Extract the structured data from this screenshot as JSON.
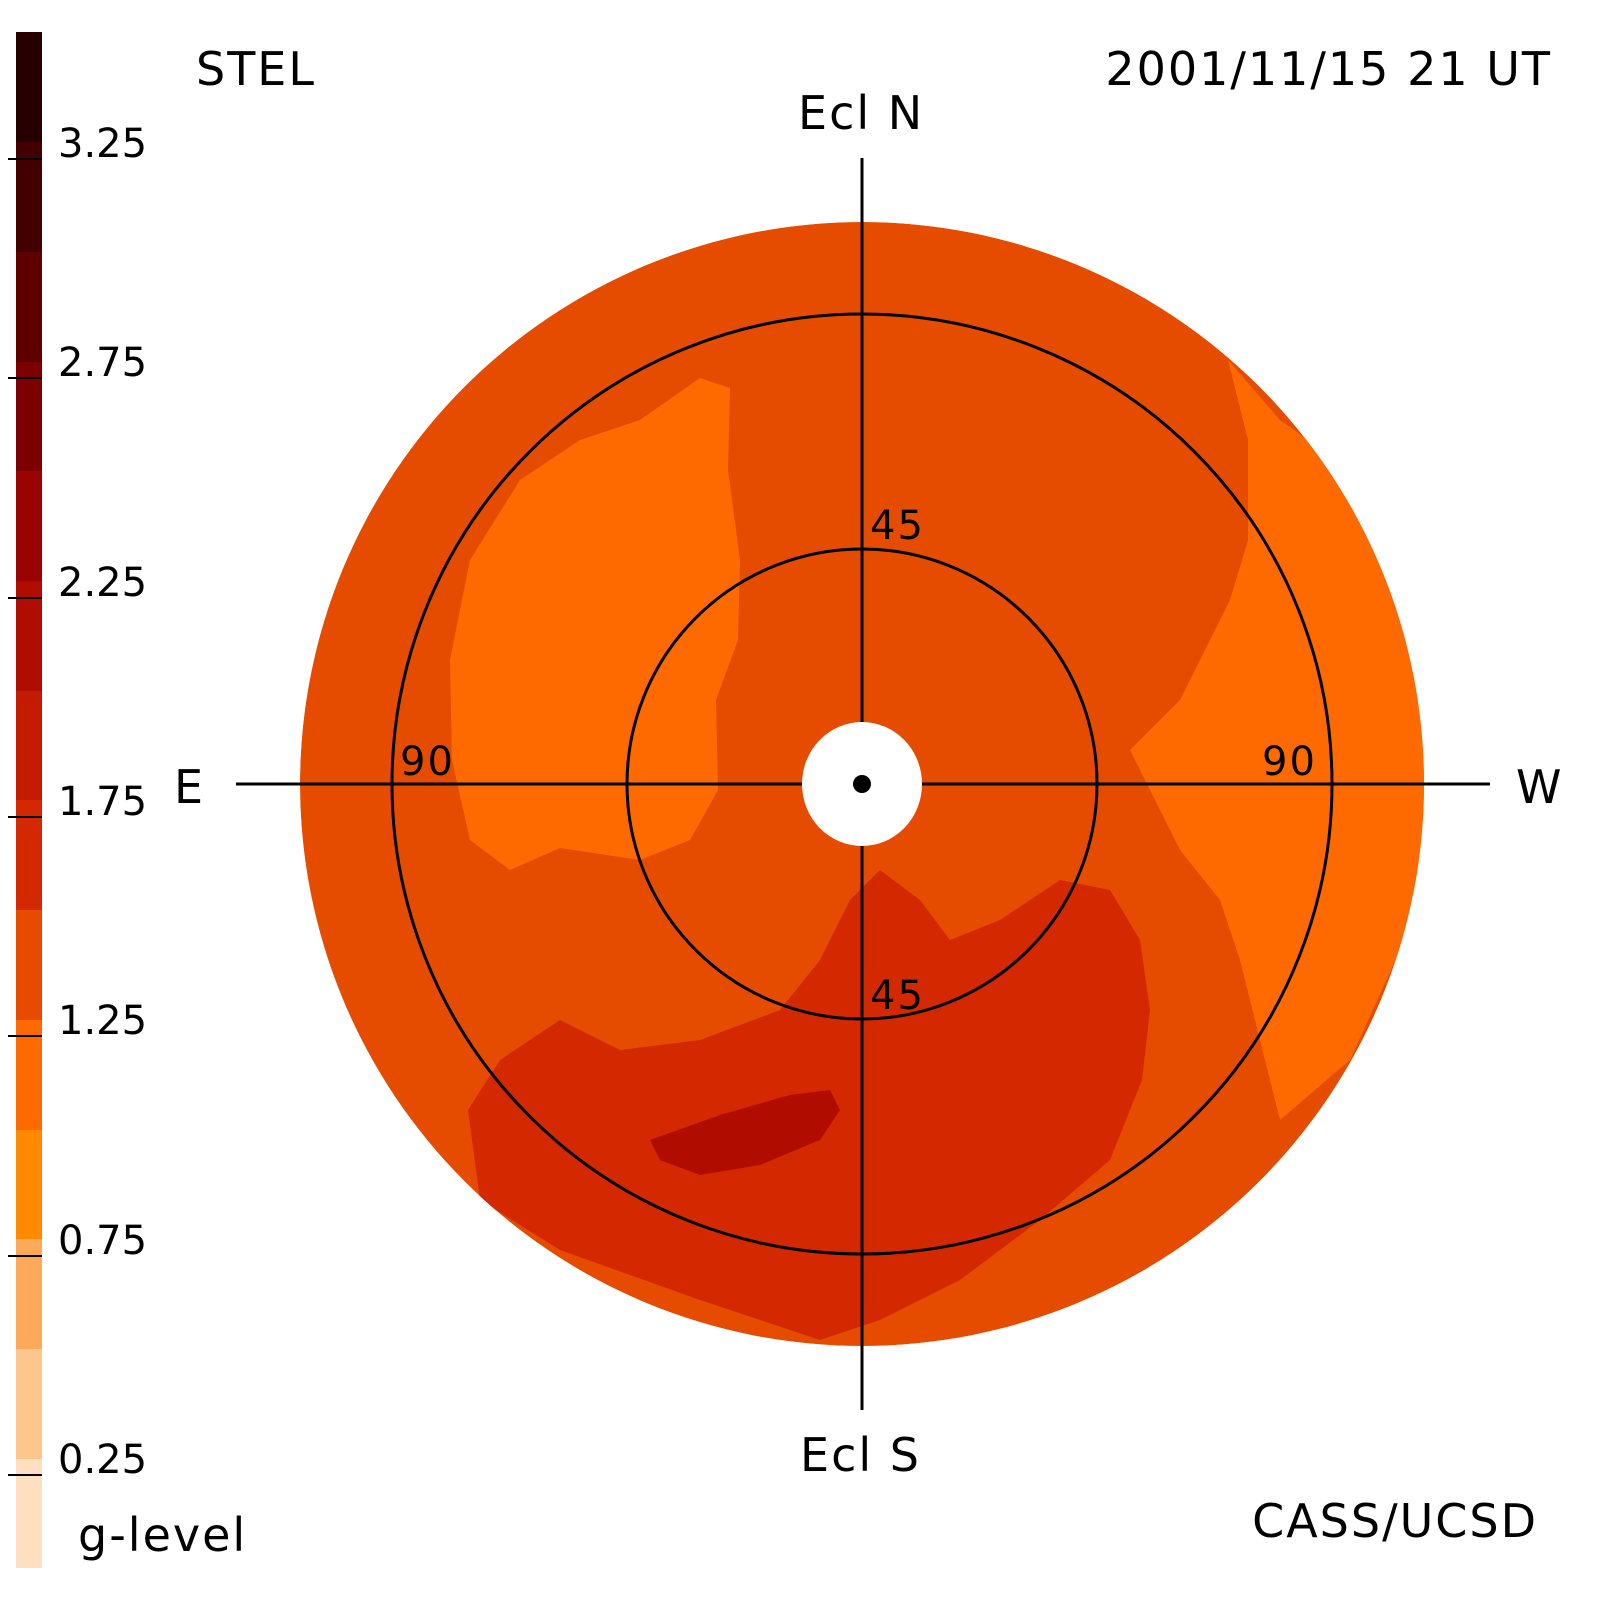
{
  "header": {
    "left_title": "STEL",
    "right_title": "2001/11/15 21 UT"
  },
  "footer": {
    "left_label": "g-level",
    "right_label": "CASS/UCSD"
  },
  "directions": {
    "north": "Ecl N",
    "south": "Ecl S",
    "east": "E",
    "west": "W"
  },
  "ring_labels": {
    "inner_north": "45",
    "inner_south": "45",
    "outer_east": "90",
    "outer_west": "90"
  },
  "chart_data": {
    "type": "heatmap",
    "projection": "polar sky map (elongation from Sun)",
    "colorbar": {
      "label": "g-level",
      "range": [
        0,
        3.5
      ],
      "step": 0.25,
      "tick_values": [
        0.25,
        0.75,
        1.25,
        1.75,
        2.25,
        2.75,
        3.25
      ],
      "tick_labels": [
        "0.25",
        "0.75",
        "1.25",
        "1.75",
        "2.25",
        "2.75",
        "3.25"
      ],
      "colors": [
        "#fee0c0",
        "#fdc68c",
        "#fca95a",
        "#ff8a00",
        "#ff6a00",
        "#e84a00",
        "#d42800",
        "#c41a00",
        "#b00c00",
        "#9a0400",
        "#7c0000",
        "#5e0000",
        "#420000",
        "#260000"
      ]
    },
    "rings_deg": [
      45,
      90
    ],
    "sky_regions": [
      {
        "name": "background",
        "g_level": 1.1
      },
      {
        "name": "east-bright-lobe",
        "g_level": 0.85
      },
      {
        "name": "west-bright-lobe",
        "g_level": 0.85
      },
      {
        "name": "south-enhanced",
        "g_level": 1.4
      },
      {
        "name": "south-core",
        "g_level": 1.65
      }
    ]
  }
}
